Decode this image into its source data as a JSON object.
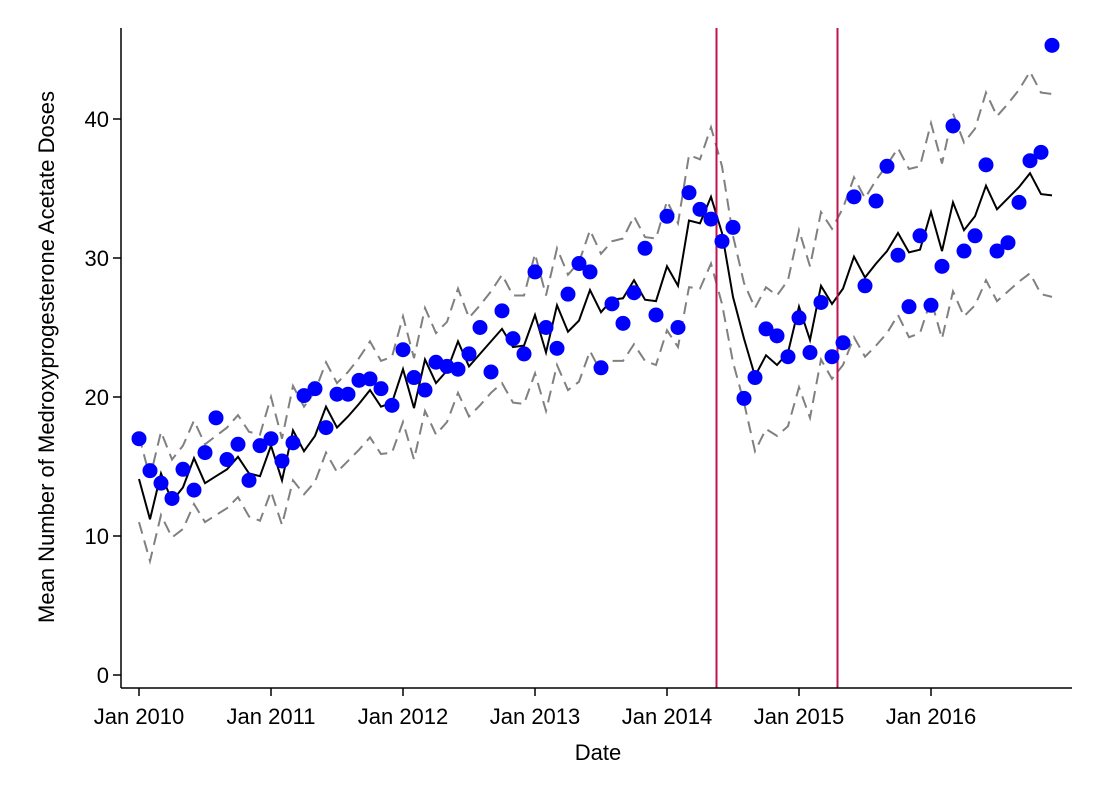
{
  "chart_data": {
    "type": "scatter",
    "xlabel": "Date",
    "ylabel": "Mean Number of Medroxyprogesterone Acetate Doses",
    "x_tick_labels": [
      "Jan 2010",
      "Jan 2011",
      "Jan 2012",
      "Jan 2013",
      "Jan 2014",
      "Jan 2015",
      "Jan 2016"
    ],
    "y_ticks": [
      0,
      10,
      20,
      30,
      40
    ],
    "ylim": [
      -1,
      46
    ],
    "x_months": 84,
    "grid": false,
    "legend": "none",
    "colors": {
      "points": "#0000ff",
      "fitted": "#000000",
      "bounds": "#808080",
      "vlines": "#c0134f"
    },
    "vlines_month_index": [
      52.5,
      63.5
    ],
    "series": [
      {
        "name": "",
        "kind": "points",
        "values": [
          17.0,
          14.7,
          13.8,
          12.7,
          14.8,
          13.3,
          16.0,
          18.5,
          15.5,
          16.6,
          14.0,
          16.5,
          17.0,
          15.4,
          16.7,
          20.1,
          20.6,
          17.8,
          20.2,
          20.2,
          21.2,
          21.3,
          20.6,
          19.4,
          23.4,
          21.4,
          20.5,
          22.5,
          22.2,
          22.0,
          23.1,
          25.0,
          21.8,
          26.2,
          24.2,
          23.1,
          29.0,
          25.0,
          23.5,
          27.4,
          29.6,
          29.0,
          22.1,
          26.7,
          25.3,
          27.5,
          30.7,
          25.9,
          33.0,
          25.0,
          34.7,
          33.5,
          32.8,
          31.2,
          32.2,
          19.9,
          21.4,
          24.9,
          24.4,
          22.9,
          25.7,
          23.2,
          26.8,
          22.9,
          23.9,
          34.4,
          28.0,
          34.1,
          36.6,
          30.2,
          26.5,
          31.6,
          26.6,
          29.4,
          39.5,
          30.5,
          31.6,
          36.7,
          30.5,
          31.1,
          34.0,
          37.0,
          37.6,
          45.3
        ]
      },
      {
        "name": "",
        "kind": "line",
        "values": [
          14.1,
          11.2,
          14.5,
          12.5,
          13.5,
          15.6,
          13.8,
          14.3,
          14.8,
          15.7,
          14.5,
          14.3,
          16.5,
          14.0,
          17.6,
          16.1,
          17.2,
          19.3,
          17.8,
          18.6,
          19.5,
          20.5,
          19.3,
          19.6,
          22.0,
          19.2,
          22.7,
          21.0,
          21.9,
          24.0,
          22.2,
          23.1,
          24.0,
          24.9,
          23.6,
          23.7,
          25.9,
          23.2,
          26.6,
          24.7,
          25.5,
          27.7,
          26.1,
          27.0,
          27.1,
          28.4,
          27.0,
          26.9,
          29.4,
          28.0,
          32.7,
          32.5,
          34.4,
          31.8,
          27.2,
          24.2,
          21.5,
          23.0,
          22.3,
          23.2,
          26.5,
          24.1,
          28.0,
          26.7,
          27.8,
          30.1,
          28.6,
          29.6,
          30.5,
          31.8,
          30.4,
          30.6,
          33.3,
          30.5,
          34.0,
          32.0,
          33.0,
          35.2,
          33.5,
          34.3,
          35.1,
          36.1,
          34.6,
          34.5
        ]
      },
      {
        "name": "",
        "kind": "line-dashed",
        "values": [
          17.2,
          14.2,
          17.5,
          15.5,
          16.5,
          18.3,
          16.6,
          17.2,
          17.8,
          18.7,
          17.5,
          17.3,
          20.0,
          17.0,
          20.8,
          19.3,
          20.4,
          22.5,
          21.0,
          21.8,
          22.8,
          24.0,
          22.6,
          22.9,
          25.8,
          22.8,
          26.4,
          24.6,
          25.4,
          27.8,
          25.7,
          26.6,
          27.6,
          28.8,
          27.3,
          27.3,
          30.3,
          27.3,
          30.7,
          28.8,
          29.7,
          32.0,
          30.3,
          31.2,
          31.4,
          33.0,
          31.5,
          31.4,
          34.1,
          32.5,
          37.4,
          37.1,
          39.4,
          36.6,
          31.6,
          28.2,
          26.4,
          27.9,
          27.3,
          28.4,
          32.0,
          29.4,
          33.3,
          32.1,
          33.6,
          35.8,
          34.3,
          35.6,
          36.7,
          37.9,
          36.4,
          36.6,
          39.7,
          36.8,
          40.4,
          38.3,
          39.3,
          41.9,
          40.2,
          41.1,
          42.1,
          43.4,
          41.9,
          41.8
        ]
      },
      {
        "name": "",
        "kind": "line-dashed",
        "values": [
          11.0,
          8.2,
          11.5,
          9.9,
          10.5,
          12.3,
          11.0,
          11.5,
          12.0,
          12.8,
          11.4,
          11.1,
          13.2,
          10.8,
          14.0,
          13.0,
          13.9,
          16.0,
          14.6,
          15.4,
          16.2,
          17.1,
          15.9,
          16.0,
          18.2,
          15.5,
          19.0,
          17.3,
          18.2,
          20.3,
          18.6,
          19.4,
          20.3,
          21.0,
          19.6,
          19.5,
          21.7,
          19.0,
          22.3,
          20.5,
          21.1,
          23.3,
          21.8,
          22.6,
          22.6,
          23.8,
          22.6,
          22.3,
          24.8,
          23.6,
          27.9,
          27.8,
          29.6,
          26.7,
          22.5,
          19.6,
          16.1,
          17.7,
          17.2,
          17.9,
          20.7,
          18.5,
          22.7,
          21.3,
          22.3,
          24.3,
          22.9,
          23.7,
          24.6,
          25.9,
          24.3,
          24.6,
          27.0,
          24.2,
          27.6,
          25.8,
          26.6,
          28.4,
          26.9,
          27.6,
          28.3,
          28.9,
          27.4,
          27.2
        ]
      }
    ]
  }
}
